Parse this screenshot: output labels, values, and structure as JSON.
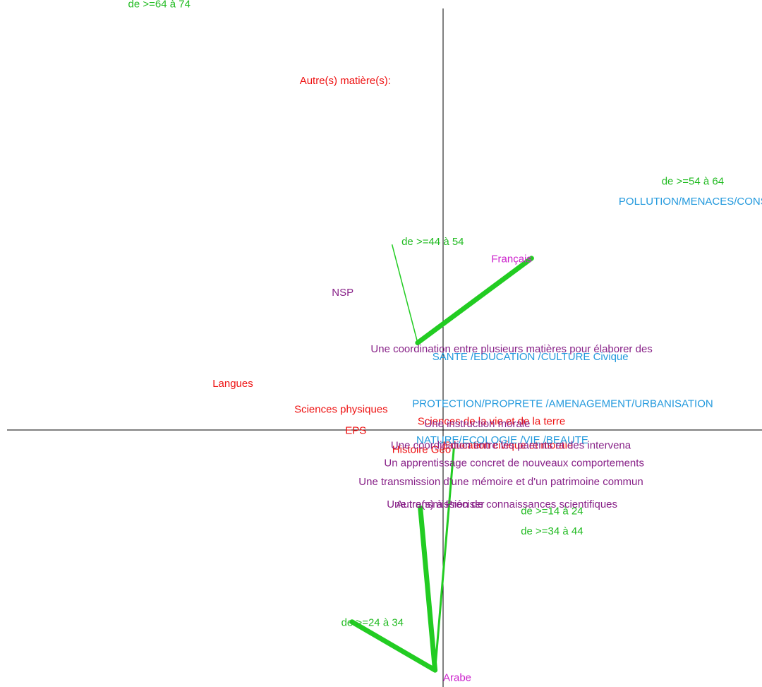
{
  "chart_data": {
    "type": "scatter",
    "title": "",
    "xlabel": "",
    "ylabel": "",
    "grid": false,
    "axes": "crosshair",
    "colors": {
      "age": "#22bb22",
      "subject": "#ee1111",
      "theme": "#2299dd",
      "approach": "#882288",
      "language": "#cc22cc",
      "link": "#22cc22"
    },
    "series": [
      {
        "group": "age",
        "points": [
          {
            "label": "de >=64 à 74",
            "x": -2.35,
            "y": 3.15
          },
          {
            "label": "de >=54 à 64",
            "x": 1.63,
            "y": 1.83
          },
          {
            "label": "de >=44 à 54",
            "x": -0.31,
            "y": 1.38
          },
          {
            "label": "de >=14 à 24",
            "x": 0.58,
            "y": -0.63
          },
          {
            "label": "de >=34 à 44",
            "x": 0.58,
            "y": -0.78
          },
          {
            "label": "de >=24 à 34",
            "x": -0.76,
            "y": -1.46
          }
        ]
      },
      {
        "group": "subject",
        "points": [
          {
            "label": "Autre(s) matière(s):",
            "x": -1.07,
            "y": 2.58
          },
          {
            "label": "Langues",
            "x": -1.72,
            "y": 0.32
          },
          {
            "label": "Sciences physiques",
            "x": -1.11,
            "y": 0.13
          },
          {
            "label": "EPS",
            "x": -0.73,
            "y": -0.03
          },
          {
            "label": "Sciences de la vie et de la terre",
            "x": -0.19,
            "y": 0.04
          },
          {
            "label": "Education civique et morale",
            "x": 0.0,
            "y": -0.14
          },
          {
            "label": "Histoire Géo",
            "x": -0.38,
            "y": -0.17
          }
        ]
      },
      {
        "group": "theme",
        "points": [
          {
            "label": "POLLUTION/MENACES/CONSEQUENCES",
            "x": 1.31,
            "y": 1.68
          },
          {
            "label": "SANTE /EDUCATION /CULTURE Civique",
            "x": -0.08,
            "y": 0.52
          },
          {
            "label": "PROTECTION/PROPRETE /AMENAGEMENT/URBANISATION",
            "x": -0.23,
            "y": 0.17
          },
          {
            "label": "NATURE/ECOLOGIE /VIE /BEAUTE",
            "x": -0.2,
            "y": -0.1
          }
        ]
      },
      {
        "group": "approach",
        "points": [
          {
            "label": "NSP",
            "x": -0.83,
            "y": 1.0
          },
          {
            "label": "Une coordination entre plusieurs matières pour élaborer des",
            "x": -0.54,
            "y": 0.58
          },
          {
            "label": "Une instruction morale",
            "x": -0.14,
            "y": 0.02
          },
          {
            "label": "Une coordination entre les parents et des intervena",
            "x": -0.39,
            "y": -0.14
          },
          {
            "label": "Un apprentissage concret de nouveaux comportements",
            "x": -0.44,
            "y": -0.27
          },
          {
            "label": "Une transmission d'une mémoire et d'un patrimoine commun",
            "x": -0.63,
            "y": -0.41
          },
          {
            "label": "Une transmission de connaissances scientifiques",
            "x": -0.42,
            "y": -0.58
          },
          {
            "label": "Autre(s) à Préciser",
            "x": -0.35,
            "y": -0.58
          }
        ]
      },
      {
        "group": "language",
        "points": [
          {
            "label": "Français",
            "x": 0.36,
            "y": 1.25
          },
          {
            "label": "Arabe",
            "x": 0.0,
            "y": -1.87
          }
        ]
      }
    ],
    "links": [
      {
        "from_x": 0.66,
        "from_y": 1.28,
        "to_x": -0.19,
        "to_y": 0.65,
        "weight": 7
      },
      {
        "from_x": -0.19,
        "from_y": 0.65,
        "to_x": -0.38,
        "to_y": 1.38,
        "weight": 1.5
      },
      {
        "from_x": -0.06,
        "from_y": -1.79,
        "to_x": -0.68,
        "to_y": -1.43,
        "weight": 7
      },
      {
        "from_x": -0.06,
        "from_y": -1.79,
        "to_x": -0.17,
        "to_y": -0.58,
        "weight": 7
      },
      {
        "from_x": -0.06,
        "from_y": -1.79,
        "to_x": 0.08,
        "to_y": -0.14,
        "weight": 3
      }
    ]
  }
}
